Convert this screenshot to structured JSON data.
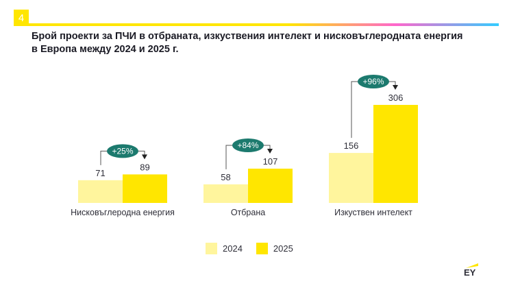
{
  "page": {
    "number": "4",
    "title_line1": "Брой проекти за ПЧИ в отбраната, изкуствения интелект и нисковъглеродната енергия",
    "title_line2": "в Европа между 2024 и 2025 г."
  },
  "chart_data": {
    "type": "bar",
    "categories": [
      "Нисковъглеродна енергия",
      "Отбрана",
      "Изкуствен интелект"
    ],
    "series": [
      {
        "name": "2024",
        "values": [
          71,
          58,
          156
        ],
        "color": "#fff59d"
      },
      {
        "name": "2025",
        "values": [
          89,
          107,
          306
        ],
        "color": "#ffe600"
      }
    ],
    "annotations": [
      "+25%",
      "+84%",
      "+96%"
    ],
    "legend_position": "bottom",
    "grid": false,
    "ylim": [
      0,
      306
    ],
    "annotation_color": "#1c7a6e"
  },
  "logo": {
    "text": "EY"
  }
}
